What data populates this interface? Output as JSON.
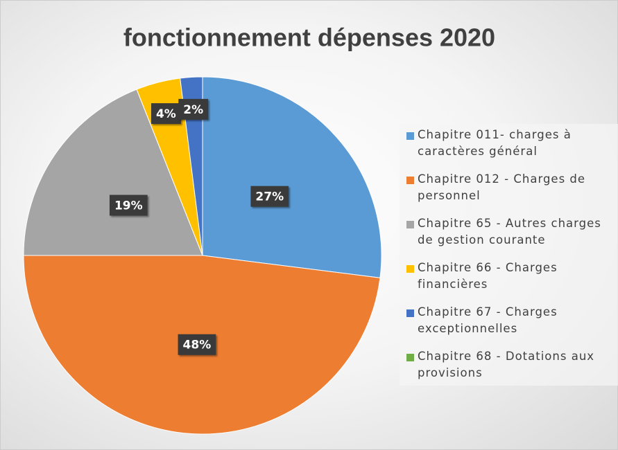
{
  "chart_data": {
    "type": "pie",
    "title": "fonctionnement dépenses 2020",
    "categories": [
      "Chapitre 011- charges à caractères général",
      "Chapitre 012 - Charges de personnel",
      "Chapitre 65 - Autres charges de gestion courante",
      "Chapitre 66 - Charges financières",
      "Chapitre 67 - Charges exceptionnelles",
      "Chapitre 68 - Dotations aux provisions"
    ],
    "values": [
      27,
      48,
      19,
      4,
      2,
      0
    ],
    "value_labels": [
      "27%",
      "48%",
      "19%",
      "4%",
      "2%",
      null
    ],
    "colors": [
      "#5b9bd5",
      "#ed7d31",
      "#a5a5a5",
      "#ffc000",
      "#4472c4",
      "#70ad47"
    ],
    "legend": "right"
  }
}
